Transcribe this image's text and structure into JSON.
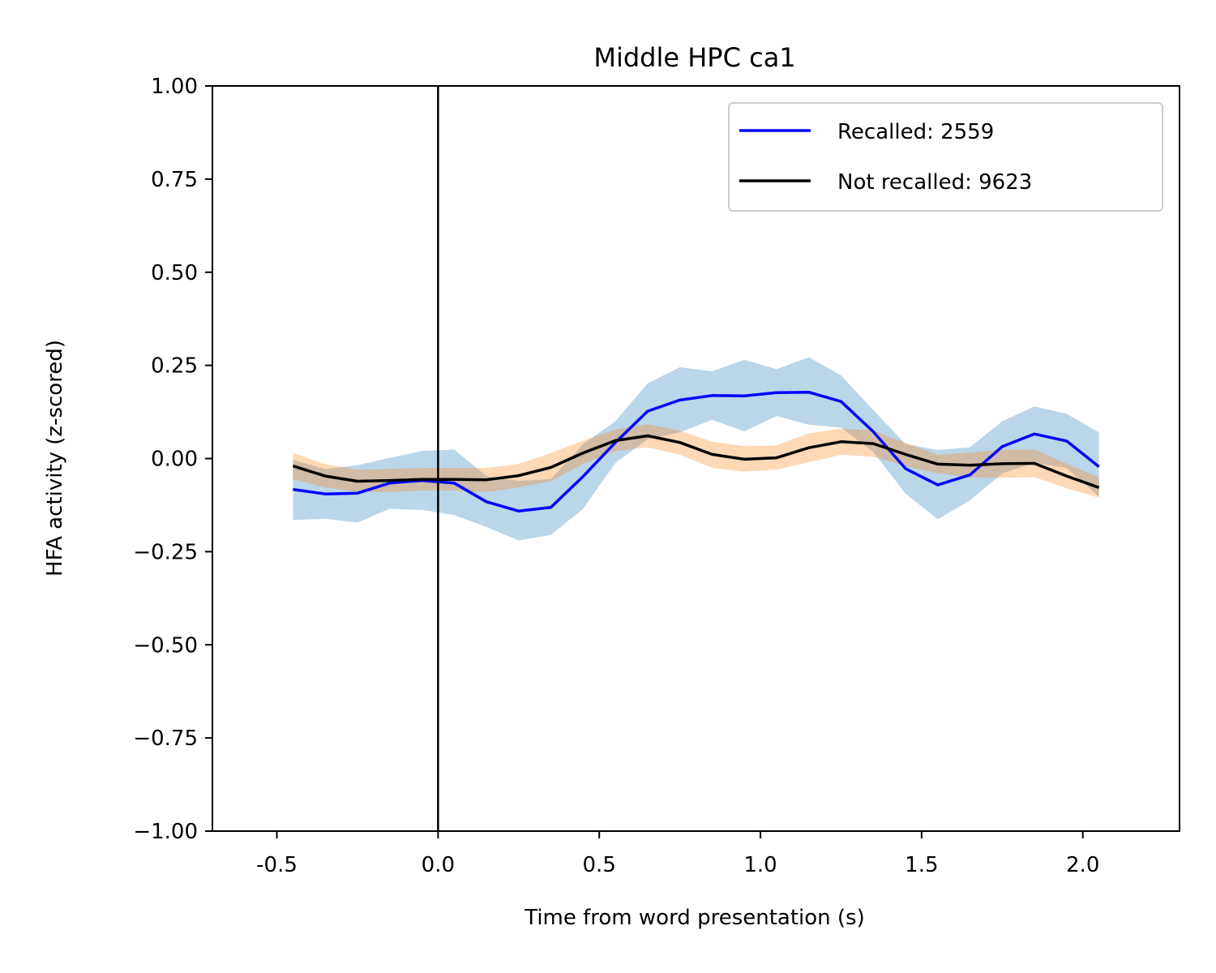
{
  "chart_data": {
    "type": "line",
    "title": "Middle HPC ca1",
    "xlabel": "Time from word presentation (s)",
    "ylabel": "HFA activity (z-scored)",
    "xlim": [
      -0.7,
      2.3
    ],
    "ylim": [
      -1.0,
      1.0
    ],
    "xticks": [
      -0.5,
      0.0,
      0.5,
      1.0,
      1.5,
      2.0
    ],
    "xtick_labels": [
      "-0.5",
      "0.0",
      "0.5",
      "1.0",
      "1.5",
      "2.0"
    ],
    "yticks": [
      -1.0,
      -0.75,
      -0.5,
      -0.25,
      0.0,
      0.25,
      0.5,
      0.75,
      1.0
    ],
    "ytick_labels": [
      "−1.00",
      "−0.75",
      "−0.50",
      "−0.25",
      "0.00",
      "0.25",
      "0.50",
      "0.75",
      "1.00"
    ],
    "vline_x": 0.0,
    "legend_position": "upper right",
    "grid": false,
    "x": [
      -0.45,
      -0.35,
      -0.25,
      -0.15,
      -0.05,
      0.05,
      0.15,
      0.25,
      0.35,
      0.45,
      0.55,
      0.65,
      0.75,
      0.85,
      0.95,
      1.05,
      1.15,
      1.25,
      1.35,
      1.45,
      1.55,
      1.65,
      1.75,
      1.85,
      1.95,
      2.05
    ],
    "series": [
      {
        "name": "Recalled: 2559",
        "color": "#0000ff",
        "band_color": "#1f77b4",
        "values": [
          -0.083,
          -0.095,
          -0.093,
          -0.066,
          -0.059,
          -0.066,
          -0.116,
          -0.141,
          -0.131,
          -0.048,
          0.043,
          0.127,
          0.157,
          0.169,
          0.168,
          0.177,
          0.178,
          0.153,
          0.072,
          -0.027,
          -0.071,
          -0.044,
          0.032,
          0.066,
          0.047,
          -0.022
        ],
        "lower": [
          -0.165,
          -0.162,
          -0.172,
          -0.135,
          -0.138,
          -0.152,
          -0.184,
          -0.22,
          -0.205,
          -0.135,
          -0.012,
          0.052,
          0.07,
          0.104,
          0.073,
          0.114,
          0.091,
          0.083,
          0.018,
          -0.094,
          -0.163,
          -0.112,
          -0.04,
          -0.011,
          -0.026,
          -0.102
        ],
        "upper": [
          -0.004,
          -0.028,
          -0.018,
          0.002,
          0.02,
          0.024,
          -0.047,
          -0.06,
          -0.055,
          0.039,
          0.1,
          0.202,
          0.245,
          0.234,
          0.265,
          0.24,
          0.272,
          0.223,
          0.13,
          0.039,
          0.023,
          0.03,
          0.1,
          0.14,
          0.12,
          0.07
        ]
      },
      {
        "name": "Not recalled: 9623",
        "color": "#000000",
        "band_color": "#ff7f0e",
        "values": [
          -0.02,
          -0.047,
          -0.061,
          -0.059,
          -0.056,
          -0.056,
          -0.057,
          -0.046,
          -0.024,
          0.015,
          0.048,
          0.061,
          0.043,
          0.011,
          -0.002,
          0.002,
          0.029,
          0.045,
          0.04,
          0.011,
          -0.015,
          -0.018,
          -0.014,
          -0.013,
          -0.047,
          -0.078
        ],
        "lower": [
          -0.055,
          -0.078,
          -0.09,
          -0.09,
          -0.086,
          -0.086,
          -0.09,
          -0.078,
          -0.06,
          -0.015,
          0.02,
          0.03,
          0.01,
          -0.025,
          -0.035,
          -0.03,
          -0.01,
          0.01,
          0.005,
          -0.02,
          -0.04,
          -0.05,
          -0.052,
          -0.05,
          -0.08,
          -0.105
        ],
        "upper": [
          0.015,
          -0.015,
          -0.03,
          -0.028,
          -0.025,
          -0.025,
          -0.025,
          -0.015,
          0.015,
          0.048,
          0.078,
          0.092,
          0.075,
          0.045,
          0.033,
          0.035,
          0.068,
          0.08,
          0.076,
          0.042,
          0.01,
          0.016,
          0.024,
          0.024,
          -0.014,
          -0.05
        ]
      }
    ]
  }
}
